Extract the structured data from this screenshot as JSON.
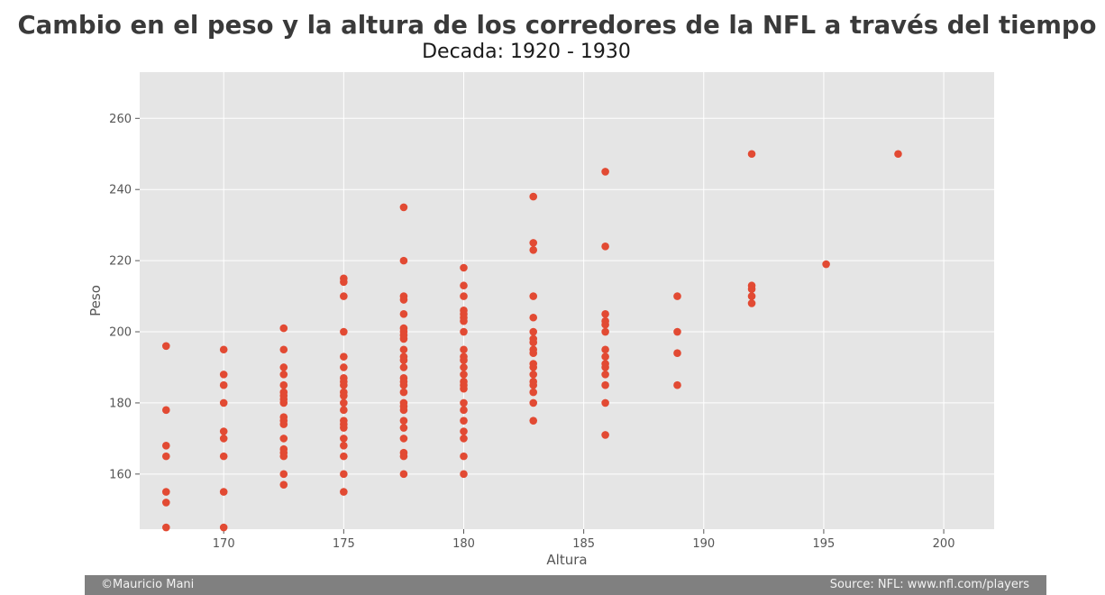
{
  "chart_data": {
    "type": "scatter",
    "title": "Cambio en el peso y la altura de los corredores de la NFL a través del tiempo",
    "subtitle": "Decada: 1920 - 1930",
    "xlabel": "Altura",
    "ylabel": "Peso",
    "xlim": [
      166.5,
      202.1
    ],
    "ylim": [
      144.5,
      273
    ],
    "xticks": [
      "170",
      "175",
      "180",
      "185",
      "190",
      "195",
      "200"
    ],
    "yticks": [
      "160",
      "180",
      "200",
      "220",
      "240",
      "260"
    ],
    "grid": true,
    "point_color": "#e24a33",
    "background_color": "#e5e5e5",
    "points": [
      {
        "x": 167.6,
        "y": 196
      },
      {
        "x": 167.6,
        "y": 178
      },
      {
        "x": 167.6,
        "y": 168
      },
      {
        "x": 167.6,
        "y": 165
      },
      {
        "x": 167.6,
        "y": 155
      },
      {
        "x": 167.6,
        "y": 152
      },
      {
        "x": 167.6,
        "y": 145
      },
      {
        "x": 170,
        "y": 195
      },
      {
        "x": 170,
        "y": 188
      },
      {
        "x": 170,
        "y": 185
      },
      {
        "x": 170,
        "y": 180
      },
      {
        "x": 170,
        "y": 172
      },
      {
        "x": 170,
        "y": 170
      },
      {
        "x": 170,
        "y": 165
      },
      {
        "x": 170,
        "y": 155
      },
      {
        "x": 170,
        "y": 145
      },
      {
        "x": 172.5,
        "y": 201
      },
      {
        "x": 172.5,
        "y": 195
      },
      {
        "x": 172.5,
        "y": 190
      },
      {
        "x": 172.5,
        "y": 188
      },
      {
        "x": 172.5,
        "y": 185
      },
      {
        "x": 172.5,
        "y": 183
      },
      {
        "x": 172.5,
        "y": 182
      },
      {
        "x": 172.5,
        "y": 181
      },
      {
        "x": 172.5,
        "y": 180
      },
      {
        "x": 172.5,
        "y": 176
      },
      {
        "x": 172.5,
        "y": 175
      },
      {
        "x": 172.5,
        "y": 174
      },
      {
        "x": 172.5,
        "y": 170
      },
      {
        "x": 172.5,
        "y": 167
      },
      {
        "x": 172.5,
        "y": 166
      },
      {
        "x": 172.5,
        "y": 165
      },
      {
        "x": 172.5,
        "y": 160
      },
      {
        "x": 172.5,
        "y": 157
      },
      {
        "x": 175,
        "y": 215
      },
      {
        "x": 175,
        "y": 214
      },
      {
        "x": 175,
        "y": 210
      },
      {
        "x": 175,
        "y": 200
      },
      {
        "x": 175,
        "y": 193
      },
      {
        "x": 175,
        "y": 190
      },
      {
        "x": 175,
        "y": 187
      },
      {
        "x": 175,
        "y": 186
      },
      {
        "x": 175,
        "y": 185
      },
      {
        "x": 175,
        "y": 183
      },
      {
        "x": 175,
        "y": 182
      },
      {
        "x": 175,
        "y": 180
      },
      {
        "x": 175,
        "y": 178
      },
      {
        "x": 175,
        "y": 175
      },
      {
        "x": 175,
        "y": 174
      },
      {
        "x": 175,
        "y": 173
      },
      {
        "x": 175,
        "y": 170
      },
      {
        "x": 175,
        "y": 168
      },
      {
        "x": 175,
        "y": 165
      },
      {
        "x": 175,
        "y": 160
      },
      {
        "x": 175,
        "y": 155
      },
      {
        "x": 177.5,
        "y": 235
      },
      {
        "x": 177.5,
        "y": 220
      },
      {
        "x": 177.5,
        "y": 210
      },
      {
        "x": 177.5,
        "y": 209
      },
      {
        "x": 177.5,
        "y": 205
      },
      {
        "x": 177.5,
        "y": 201
      },
      {
        "x": 177.5,
        "y": 200
      },
      {
        "x": 177.5,
        "y": 199
      },
      {
        "x": 177.5,
        "y": 198
      },
      {
        "x": 177.5,
        "y": 195
      },
      {
        "x": 177.5,
        "y": 193
      },
      {
        "x": 177.5,
        "y": 192
      },
      {
        "x": 177.5,
        "y": 190
      },
      {
        "x": 177.5,
        "y": 187
      },
      {
        "x": 177.5,
        "y": 186
      },
      {
        "x": 177.5,
        "y": 185
      },
      {
        "x": 177.5,
        "y": 183
      },
      {
        "x": 177.5,
        "y": 180
      },
      {
        "x": 177.5,
        "y": 179
      },
      {
        "x": 177.5,
        "y": 178
      },
      {
        "x": 177.5,
        "y": 175
      },
      {
        "x": 177.5,
        "y": 173
      },
      {
        "x": 177.5,
        "y": 170
      },
      {
        "x": 177.5,
        "y": 166
      },
      {
        "x": 177.5,
        "y": 165
      },
      {
        "x": 177.5,
        "y": 160
      },
      {
        "x": 180,
        "y": 218
      },
      {
        "x": 180,
        "y": 213
      },
      {
        "x": 180,
        "y": 210
      },
      {
        "x": 180,
        "y": 206
      },
      {
        "x": 180,
        "y": 205
      },
      {
        "x": 180,
        "y": 204
      },
      {
        "x": 180,
        "y": 203
      },
      {
        "x": 180,
        "y": 200
      },
      {
        "x": 180,
        "y": 195
      },
      {
        "x": 180,
        "y": 193
      },
      {
        "x": 180,
        "y": 192
      },
      {
        "x": 180,
        "y": 190
      },
      {
        "x": 180,
        "y": 188
      },
      {
        "x": 180,
        "y": 186
      },
      {
        "x": 180,
        "y": 185
      },
      {
        "x": 180,
        "y": 184
      },
      {
        "x": 180,
        "y": 180
      },
      {
        "x": 180,
        "y": 178
      },
      {
        "x": 180,
        "y": 175
      },
      {
        "x": 180,
        "y": 172
      },
      {
        "x": 180,
        "y": 170
      },
      {
        "x": 180,
        "y": 165
      },
      {
        "x": 180,
        "y": 160
      },
      {
        "x": 182.9,
        "y": 238
      },
      {
        "x": 182.9,
        "y": 225
      },
      {
        "x": 182.9,
        "y": 223
      },
      {
        "x": 182.9,
        "y": 210
      },
      {
        "x": 182.9,
        "y": 204
      },
      {
        "x": 182.9,
        "y": 200
      },
      {
        "x": 182.9,
        "y": 198
      },
      {
        "x": 182.9,
        "y": 197
      },
      {
        "x": 182.9,
        "y": 195
      },
      {
        "x": 182.9,
        "y": 194
      },
      {
        "x": 182.9,
        "y": 191
      },
      {
        "x": 182.9,
        "y": 190
      },
      {
        "x": 182.9,
        "y": 188
      },
      {
        "x": 182.9,
        "y": 186
      },
      {
        "x": 182.9,
        "y": 185
      },
      {
        "x": 182.9,
        "y": 183
      },
      {
        "x": 182.9,
        "y": 180
      },
      {
        "x": 182.9,
        "y": 175
      },
      {
        "x": 185.9,
        "y": 245
      },
      {
        "x": 185.9,
        "y": 224
      },
      {
        "x": 185.9,
        "y": 205
      },
      {
        "x": 185.9,
        "y": 203
      },
      {
        "x": 185.9,
        "y": 202
      },
      {
        "x": 185.9,
        "y": 200
      },
      {
        "x": 185.9,
        "y": 195
      },
      {
        "x": 185.9,
        "y": 193
      },
      {
        "x": 185.9,
        "y": 191
      },
      {
        "x": 185.9,
        "y": 190
      },
      {
        "x": 185.9,
        "y": 188
      },
      {
        "x": 185.9,
        "y": 185
      },
      {
        "x": 185.9,
        "y": 180
      },
      {
        "x": 185.9,
        "y": 171
      },
      {
        "x": 188.9,
        "y": 210
      },
      {
        "x": 188.9,
        "y": 200
      },
      {
        "x": 188.9,
        "y": 194
      },
      {
        "x": 188.9,
        "y": 185
      },
      {
        "x": 192,
        "y": 250
      },
      {
        "x": 192,
        "y": 213
      },
      {
        "x": 192,
        "y": 212
      },
      {
        "x": 192,
        "y": 210
      },
      {
        "x": 192,
        "y": 208
      },
      {
        "x": 195.1,
        "y": 219
      },
      {
        "x": 198.1,
        "y": 250
      }
    ]
  },
  "footer": {
    "left": "©Mauricio Mani",
    "right": "Source: NFL: www.nfl.com/players"
  }
}
